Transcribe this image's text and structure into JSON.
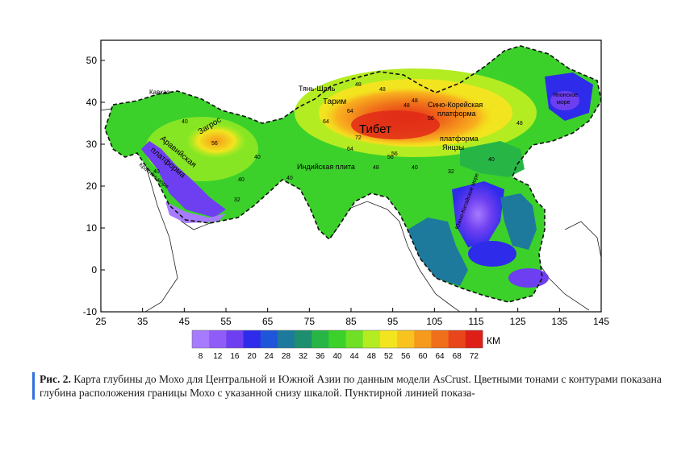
{
  "map": {
    "x_ticks": [
      "25",
      "35",
      "45",
      "55",
      "65",
      "75",
      "85",
      "95",
      "105",
      "115",
      "125",
      "135",
      "145"
    ],
    "y_ticks": [
      "50",
      "40",
      "30",
      "20",
      "10",
      "0",
      "-10"
    ],
    "labels": {
      "kavkaz": "Кавказ",
      "zagros": "Загрос",
      "arab1": "Аравийская",
      "arab2": "платформа",
      "redsea": "Красное море",
      "tienshan": "Тянь-Шань",
      "tarim": "Тарим",
      "tibet": "Тибет",
      "sinokor1": "Сино-Корейская",
      "sinokor2": "платформа",
      "yangtze1": "платформа",
      "yangtze2": "Янцзы",
      "india": "Индийская плита",
      "scs": "Южно-Китайское море",
      "japan1": "Японское",
      "japan2": "море"
    },
    "contour_values": [
      "40",
      "48",
      "48",
      "48",
      "64",
      "64",
      "56",
      "72",
      "64",
      "56",
      "48",
      "56",
      "40",
      "40",
      "32",
      "48",
      "40",
      "56",
      "40",
      "40",
      "32",
      "40",
      "48"
    ]
  },
  "colorbar": {
    "unit": "КМ",
    "ticks": [
      "8",
      "12",
      "16",
      "20",
      "24",
      "28",
      "32",
      "36",
      "40",
      "44",
      "48",
      "52",
      "56",
      "60",
      "64",
      "68",
      "72"
    ],
    "colors": [
      "#a77bff",
      "#8f5cf7",
      "#6e3ff0",
      "#2f2bea",
      "#1f55d8",
      "#1d7a9c",
      "#1e8f6e",
      "#27b646",
      "#3bd12a",
      "#6fe026",
      "#b4ec22",
      "#f2e51f",
      "#f8c31e",
      "#f59a1c",
      "#f06f1a",
      "#e8451a",
      "#dd1f18"
    ]
  },
  "caption": {
    "label": "Рис. 2.",
    "text": " Карта глубины до Мохо для Центральной и Южной Азии по данным модели AsCrust. Цветными тонами с контурами показана глубина расположения границы Мохо с указанной снизу шкалой. Пунктирной линией показа-"
  }
}
